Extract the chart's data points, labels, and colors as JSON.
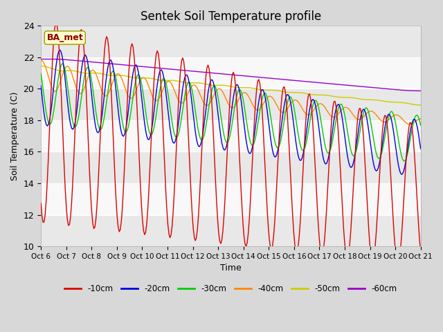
{
  "title": "Sentek Soil Temperature profile",
  "xlabel": "Time",
  "ylabel": "Soil Temperature (C)",
  "ylim": [
    10,
    24
  ],
  "annotation": "BA_met",
  "series_colors": {
    "-10cm": "#dd0000",
    "-20cm": "#0000dd",
    "-30cm": "#00cc00",
    "-40cm": "#ff8800",
    "-50cm": "#cccc00",
    "-60cm": "#9900cc"
  },
  "xtick_labels": [
    "Oct 6",
    "Oct 7",
    "Oct 8",
    "Oct 9",
    "Oct 10",
    "Oct 11",
    "Oct 12",
    "Oct 13",
    "Oct 14",
    "Oct 15",
    "Oct 16",
    "Oct 17",
    "Oct 18",
    "Oct 19",
    "Oct 20",
    "Oct 21"
  ],
  "ytick_labels": [
    10,
    12,
    14,
    16,
    18,
    20,
    22,
    24
  ],
  "figsize": [
    6.4,
    4.8
  ],
  "dpi": 100
}
